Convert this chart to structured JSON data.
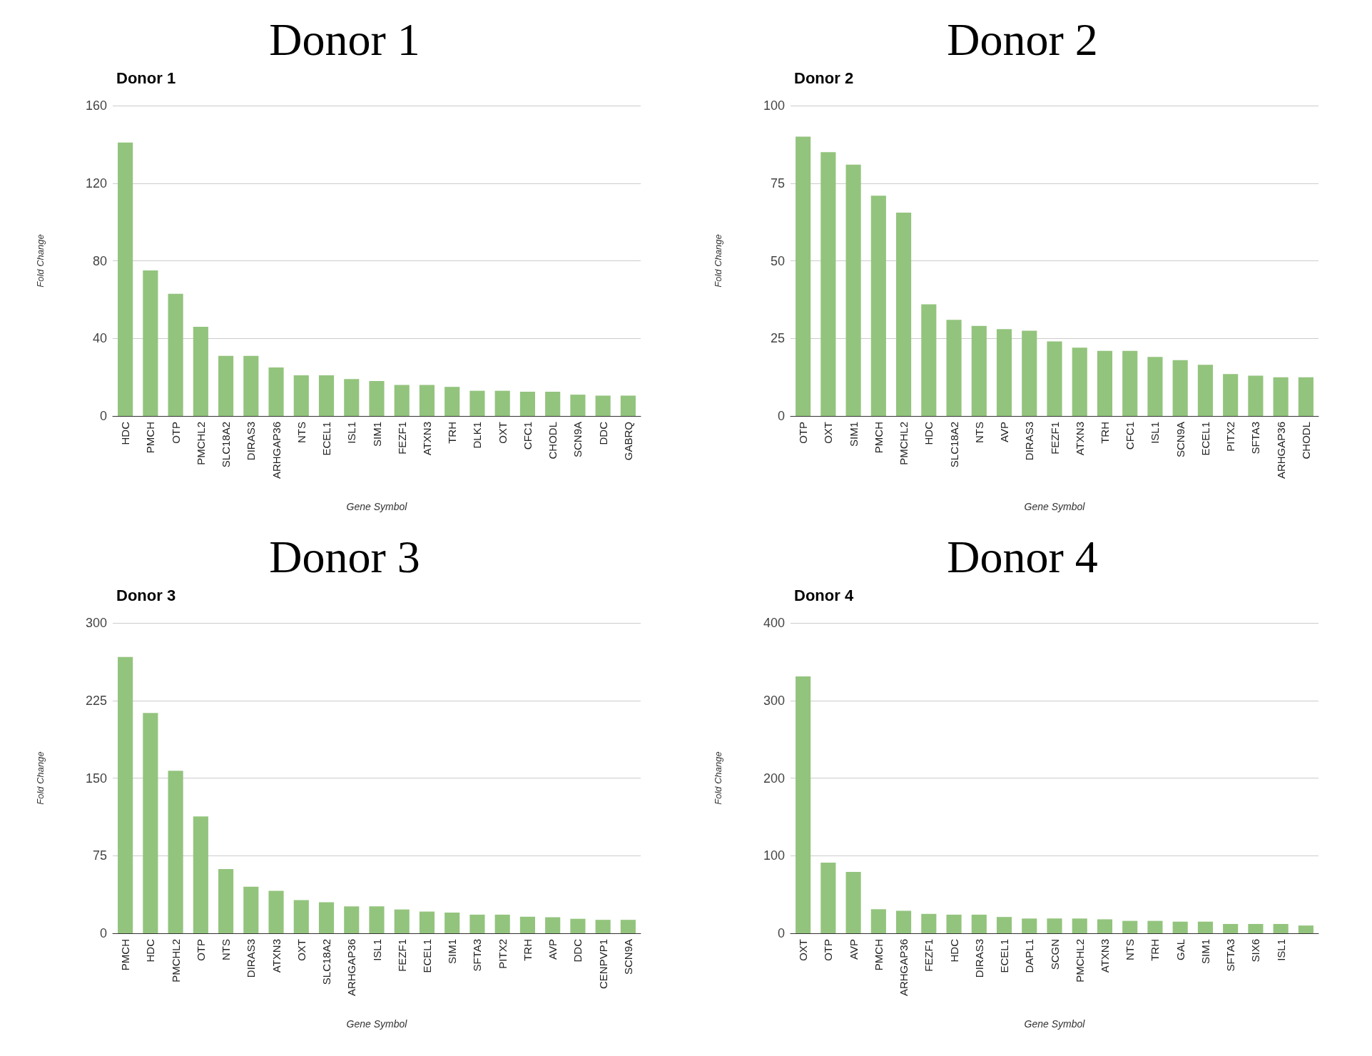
{
  "chart_data": [
    {
      "type": "bar",
      "title": "Donor 1",
      "subtitle": "Donor 1",
      "xlabel": "Gene Symbol",
      "ylabel": "Fold Change",
      "color": "#93c47d",
      "grid": "y",
      "categories": [
        "HDC",
        "PMCH",
        "OTP",
        "PMCHL2",
        "SLC18A2",
        "DIRAS3",
        "ARHGAP36",
        "NTS",
        "ECEL1",
        "ISL1",
        "SIM1",
        "FEZF1",
        "ATXN3",
        "TRH",
        "DLK1",
        "OXT",
        "CFC1",
        "CHODL",
        "SCN9A",
        "DDC",
        "GABRQ"
      ],
      "values": [
        141,
        75,
        63,
        46,
        31,
        31,
        25,
        21,
        21,
        19,
        18,
        16,
        16,
        15,
        13,
        13,
        12.5,
        12.5,
        11,
        10.5,
        10.5
      ],
      "ylim": [
        0,
        160
      ],
      "yticks": [
        0,
        40,
        80,
        120,
        160
      ]
    },
    {
      "type": "bar",
      "title": "Donor 2",
      "subtitle": "Donor 2",
      "xlabel": "Gene Symbol",
      "ylabel": "Fold Change",
      "color": "#93c47d",
      "grid": "y",
      "categories": [
        "OTP",
        "OXT",
        "SIM1",
        "PMCH",
        "PMCHL2",
        "HDC",
        "SLC18A2",
        "NTS",
        "AVP",
        "DIRAS3",
        "FEZF1",
        "ATXN3",
        "TRH",
        "CFC1",
        "ISL1",
        "SCN9A",
        "ECEL1",
        "PITX2",
        "SFTA3",
        "ARHGAP36",
        "CHODL"
      ],
      "values": [
        90,
        85,
        81,
        71,
        65.5,
        36,
        31,
        29,
        28,
        27.5,
        24,
        22,
        21,
        21,
        19,
        18,
        16.5,
        13.5,
        13,
        12.5,
        12.5
      ],
      "ylim": [
        0,
        100
      ],
      "yticks": [
        0,
        25,
        50,
        75,
        100
      ]
    },
    {
      "type": "bar",
      "title": "Donor 3",
      "subtitle": "Donor 3",
      "xlabel": "Gene Symbol",
      "ylabel": "Fold Change",
      "color": "#93c47d",
      "grid": "y",
      "categories": [
        "PMCH",
        "HDC",
        "PMCHL2",
        "OTP",
        "NTS",
        "DIRAS3",
        "ATXN3",
        "OXT",
        "SLC18A2",
        "ARHGAP36",
        "ISL1",
        "FEZF1",
        "ECEL1",
        "SIM1",
        "SFTA3",
        "PITX2",
        "TRH",
        "AVP",
        "DDC",
        "CENPVP1",
        "SCN9A"
      ],
      "values": [
        267,
        213,
        157,
        113,
        62,
        45,
        41,
        32,
        30,
        26,
        26,
        23,
        21,
        20,
        18,
        18,
        16,
        15.5,
        14,
        13,
        13
      ],
      "ylim": [
        0,
        300
      ],
      "yticks": [
        0,
        75,
        150,
        225,
        300
      ]
    },
    {
      "type": "bar",
      "title": "Donor 4",
      "subtitle": "Donor 4",
      "xlabel": "Gene Symbol",
      "ylabel": "Fold Change",
      "color": "#93c47d",
      "grid": "y",
      "categories": [
        "OXT",
        "OTP",
        "AVP",
        "PMCH",
        "ARHGAP36",
        "FEZF1",
        "HDC",
        "DIRAS3",
        "ECEL1",
        "DAPL1",
        "SCGN",
        "PMCHL2",
        "ATXN3",
        "NTS",
        "TRH",
        "GAL",
        "SIM1",
        "SFTA3",
        "SIX6",
        "ISL1",
        null
      ],
      "values": [
        331,
        91,
        79,
        31,
        29,
        25,
        24,
        24,
        21,
        19,
        19,
        19,
        18,
        16,
        16,
        15,
        15,
        12,
        12,
        12,
        10
      ],
      "ylim": [
        0,
        400
      ],
      "yticks": [
        0,
        100,
        200,
        300,
        400
      ]
    }
  ]
}
